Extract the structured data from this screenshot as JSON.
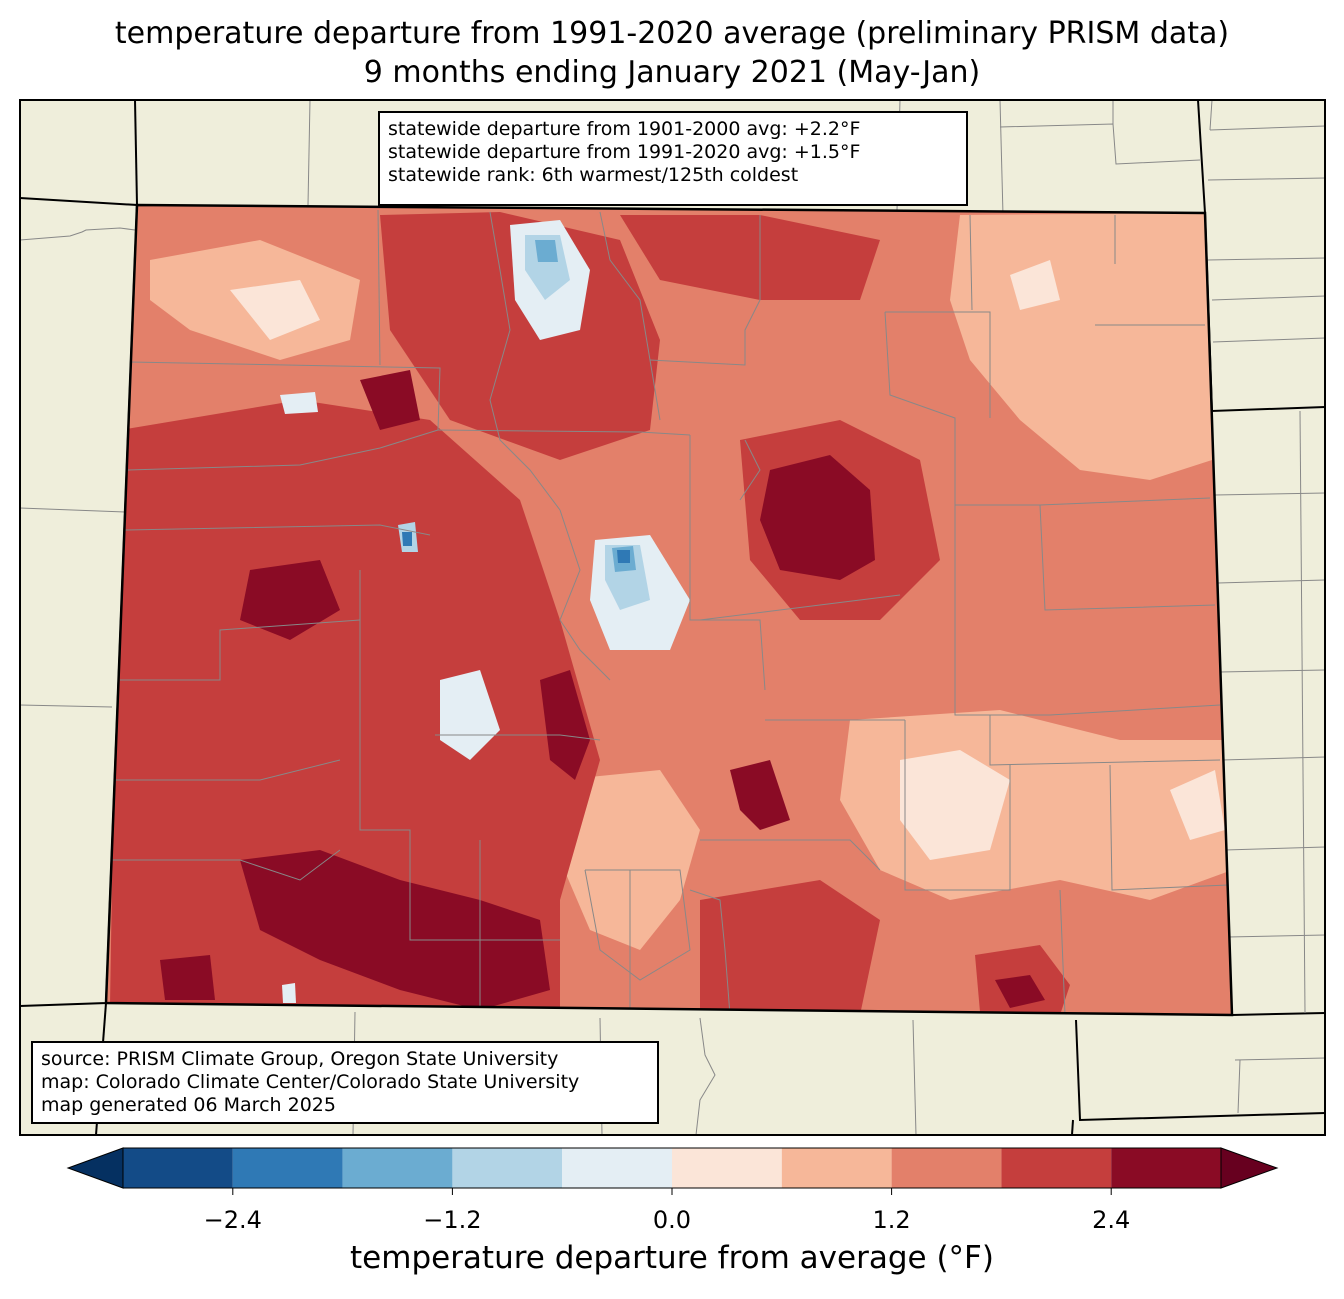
{
  "title_line1": "temperature departure from 1991-2020 average (preliminary PRISM data)",
  "title_line2": "9 months ending January 2021 (May-Jan)",
  "stats_box": {
    "line1": "statewide departure from 1901-2000 avg: +2.2°F",
    "line2": "statewide departure from 1991-2020 avg: +1.5°F",
    "line3": "statewide rank: 6th warmest/125th coldest"
  },
  "credits_box": {
    "line1": "source: PRISM Climate Group, Oregon State University",
    "line2": "map: Colorado Climate Center/Colorado State University",
    "line3": "map generated 06 March 2025"
  },
  "colorbar": {
    "label": "temperature departure from average (°F)",
    "ticks": [
      {
        "value": -2.4,
        "label": "−2.4"
      },
      {
        "value": -1.2,
        "label": "−1.2"
      },
      {
        "value": 0.0,
        "label": "0.0"
      },
      {
        "value": 1.2,
        "label": "1.2"
      },
      {
        "value": 2.4,
        "label": "2.4"
      }
    ],
    "min": -3.0,
    "max": 3.0,
    "bins": [
      {
        "from": -3.0,
        "to": -2.4,
        "color": "#134b87"
      },
      {
        "from": -2.4,
        "to": -1.8,
        "color": "#2f79b5"
      },
      {
        "from": -1.8,
        "to": -1.2,
        "color": "#6bacd1"
      },
      {
        "from": -1.2,
        "to": -0.6,
        "color": "#b2d4e6"
      },
      {
        "from": -0.6,
        "to": 0.0,
        "color": "#e4eef4"
      },
      {
        "from": 0.0,
        "to": 0.6,
        "color": "#fbe5d8"
      },
      {
        "from": 0.6,
        "to": 1.2,
        "color": "#f6b799"
      },
      {
        "from": 1.2,
        "to": 1.8,
        "color": "#e3806a"
      },
      {
        "from": 1.8,
        "to": 2.4,
        "color": "#c53e3d"
      },
      {
        "from": 2.4,
        "to": 3.0,
        "color": "#8a0b25"
      }
    ],
    "under_color": "#053061",
    "over_color": "#67001f"
  },
  "colors": {
    "land": "#efeedb",
    "county_lines": "#888888",
    "state_lines": "#000000"
  }
}
